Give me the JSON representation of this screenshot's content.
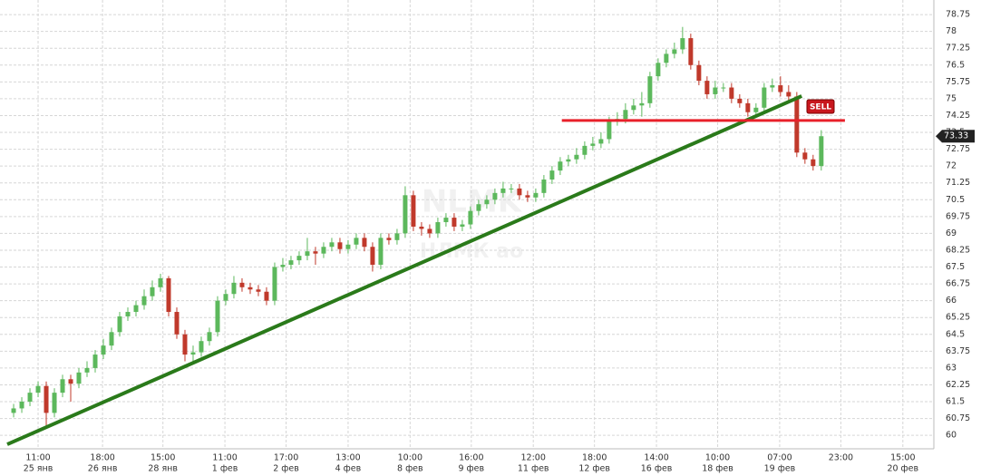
{
  "chart_data": {
    "type": "candlestick",
    "watermark": "NLMK",
    "watermark_subtitle": "НЛМК ao",
    "up_color": "#5cb85c",
    "down_color": "#c0392b",
    "open": [
      61.0,
      61.2,
      61.5,
      61.9,
      62.2,
      61.0,
      61.9,
      62.5,
      62.3,
      62.8,
      63.0,
      63.6,
      64.0,
      64.6,
      65.3,
      65.5,
      65.8,
      66.2,
      66.6,
      67.0,
      65.5,
      64.5,
      63.6,
      63.7,
      64.2,
      64.6,
      66.0,
      66.3,
      66.8,
      66.6,
      66.5,
      66.4,
      66.0,
      67.5,
      67.6,
      67.8,
      68.0,
      68.2,
      68.1,
      68.4,
      68.6,
      68.3,
      68.5,
      68.8,
      68.4,
      67.6,
      68.8,
      68.7,
      69.0,
      70.7,
      69.3,
      69.2,
      69.0,
      69.5,
      69.7,
      69.3,
      69.4,
      70.0,
      70.3,
      70.5,
      70.8,
      71.0,
      71.0,
      70.7,
      70.6,
      70.8,
      71.4,
      71.8,
      72.2,
      72.3,
      72.5,
      72.9,
      73.0,
      73.2,
      74.0,
      74.1,
      74.5,
      74.7,
      74.8,
      76.0,
      76.6,
      77.0,
      77.2,
      77.7,
      76.5,
      75.8,
      75.2,
      75.5,
      75.5,
      75.0,
      74.8,
      74.4,
      74.6,
      75.5,
      75.6,
      75.3,
      75.1,
      72.6,
      72.3,
      72.0
    ],
    "high": [
      61.4,
      61.7,
      62.1,
      62.4,
      62.4,
      62.1,
      62.7,
      62.7,
      63.0,
      63.3,
      63.8,
      64.3,
      64.8,
      65.5,
      65.7,
      66.0,
      66.5,
      66.9,
      67.2,
      67.1,
      65.7,
      64.7,
      64.0,
      64.4,
      64.8,
      66.2,
      66.5,
      67.1,
      67.0,
      66.8,
      66.7,
      66.6,
      67.7,
      67.9,
      68.0,
      68.2,
      68.8,
      68.4,
      68.6,
      68.8,
      68.8,
      68.7,
      69.0,
      69.0,
      68.6,
      69.0,
      69.0,
      69.2,
      71.1,
      70.9,
      69.5,
      69.4,
      69.7,
      69.9,
      69.9,
      69.6,
      70.2,
      70.5,
      70.7,
      71.0,
      71.3,
      71.2,
      71.2,
      70.9,
      71.0,
      71.6,
      72.0,
      72.4,
      72.5,
      72.8,
      73.1,
      73.3,
      73.5,
      74.2,
      74.4,
      74.8,
      75.0,
      75.3,
      76.2,
      76.8,
      77.2,
      77.5,
      78.2,
      77.9,
      76.7,
      76.0,
      75.8,
      75.7,
      75.7,
      75.2,
      75.0,
      74.8,
      75.7,
      75.9,
      76.0,
      75.6,
      75.3,
      72.8,
      72.5,
      73.6
    ],
    "low": [
      60.8,
      61.0,
      61.3,
      61.7,
      60.4,
      60.8,
      61.7,
      61.5,
      62.1,
      62.6,
      62.8,
      63.4,
      63.8,
      64.4,
      65.1,
      65.3,
      65.6,
      66.0,
      66.4,
      65.3,
      64.3,
      63.3,
      63.3,
      63.5,
      64.0,
      64.4,
      65.8,
      66.1,
      66.4,
      66.3,
      66.2,
      65.8,
      65.8,
      67.3,
      67.4,
      67.6,
      67.8,
      67.6,
      67.9,
      68.2,
      68.1,
      68.1,
      68.3,
      68.2,
      67.3,
      67.4,
      68.5,
      68.5,
      68.8,
      69.1,
      68.9,
      68.8,
      68.8,
      69.3,
      69.1,
      69.1,
      69.2,
      69.8,
      70.1,
      70.3,
      70.6,
      70.8,
      70.5,
      70.4,
      70.4,
      70.6,
      71.2,
      71.6,
      72.0,
      72.1,
      72.3,
      72.7,
      72.8,
      73.0,
      73.8,
      73.9,
      74.3,
      74.2,
      74.6,
      75.8,
      76.4,
      76.8,
      77.0,
      76.3,
      75.6,
      75.0,
      75.0,
      75.3,
      74.8,
      74.6,
      74.2,
      74.2,
      74.4,
      75.3,
      75.1,
      74.9,
      72.4,
      72.1,
      71.8,
      71.8
    ],
    "close": [
      61.2,
      61.5,
      61.9,
      62.2,
      61.0,
      61.9,
      62.5,
      62.3,
      62.8,
      63.0,
      63.6,
      64.0,
      64.6,
      65.3,
      65.5,
      65.8,
      66.2,
      66.6,
      67.0,
      65.5,
      64.5,
      63.6,
      63.7,
      64.2,
      64.6,
      66.0,
      66.3,
      66.8,
      66.6,
      66.5,
      66.4,
      66.0,
      67.5,
      67.6,
      67.8,
      68.0,
      68.2,
      68.1,
      68.4,
      68.6,
      68.3,
      68.5,
      68.8,
      68.4,
      67.6,
      68.8,
      68.7,
      69.0,
      70.7,
      69.3,
      69.2,
      69.0,
      69.5,
      69.7,
      69.3,
      69.4,
      70.0,
      70.3,
      70.5,
      70.8,
      71.0,
      71.0,
      70.7,
      70.6,
      70.8,
      71.4,
      71.8,
      72.2,
      72.3,
      72.5,
      72.9,
      73.0,
      73.2,
      74.0,
      74.1,
      74.5,
      74.7,
      74.8,
      76.0,
      76.6,
      77.0,
      77.2,
      77.7,
      76.5,
      75.8,
      75.2,
      75.5,
      75.5,
      75.0,
      74.8,
      74.4,
      74.6,
      75.5,
      75.6,
      75.3,
      75.1,
      72.6,
      72.3,
      72.0,
      73.33
    ],
    "xlim": [
      -1.67,
      112.8
    ],
    "ylim": [
      59.4,
      79.4
    ],
    "xticks": [
      {
        "value": 3,
        "label": "11:00",
        "sublabel": "25 янв"
      },
      {
        "value": 10.9,
        "label": "18:00",
        "sublabel": "26 янв"
      },
      {
        "value": 18.3,
        "label": "15:00",
        "sublabel": "28 янв"
      },
      {
        "value": 25.9,
        "label": "11:00",
        "sublabel": "1 фев"
      },
      {
        "value": 33.4,
        "label": "17:00",
        "sublabel": "2 фев"
      },
      {
        "value": 41,
        "label": "13:00",
        "sublabel": "4 фев"
      },
      {
        "value": 48.6,
        "label": "10:00",
        "sublabel": "8 фев"
      },
      {
        "value": 56.1,
        "label": "16:00",
        "sublabel": "9 фев"
      },
      {
        "value": 63.7,
        "label": "12:00",
        "sublabel": "11 фев"
      },
      {
        "value": 71.2,
        "label": "18:00",
        "sublabel": "12 фев"
      },
      {
        "value": 78.8,
        "label": "14:00",
        "sublabel": "16 фев"
      },
      {
        "value": 86.3,
        "label": "10:00",
        "sublabel": "18 фев"
      },
      {
        "value": 93.9,
        "label": "07:00",
        "sublabel": "19 фев"
      },
      {
        "value": 101.4,
        "label": "23:00"
      },
      {
        "value": 109,
        "label": "15:00",
        "sublabel": "20 фев"
      }
    ],
    "yticks": [
      60,
      60.75,
      61.5,
      62.25,
      63,
      63.75,
      64.5,
      65.25,
      66,
      66.75,
      67.5,
      68.25,
      69,
      69.75,
      70.5,
      71.25,
      72,
      72.75,
      73.5,
      74.25,
      75,
      75.75,
      76.5,
      77.25,
      78,
      78.75
    ],
    "grid": true,
    "trendline": {
      "x": [
        -0.78,
        96.6
      ],
      "y": [
        59.6,
        75.12
      ],
      "color": "#2a7a1a"
    },
    "level": {
      "x": [
        67.2,
        101.9
      ],
      "y": 74.03,
      "color": "#e8202a"
    },
    "signal": "SELL"
  }
}
